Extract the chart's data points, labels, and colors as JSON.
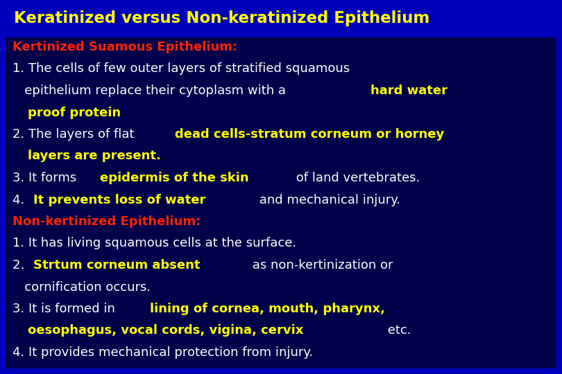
{
  "title": "Keratinized versus Non-keratinized Epithelium",
  "title_color": "#FFFF00",
  "title_fontsize": 16.5,
  "fig_bg": "#0000BB",
  "content_bg": "#00004A",
  "content_lines": [
    [
      {
        "text": "Kertinized Suamous Epithelium:",
        "color": "#FF2200",
        "bold": true
      }
    ],
    [
      {
        "text": "1. The cells of few outer layers of stratified squamous",
        "color": "#FFFFFF",
        "bold": false
      }
    ],
    [
      {
        "text": "   epithelium replace their cytoplasm with a ",
        "color": "#FFFFFF",
        "bold": false
      },
      {
        "text": "hard water",
        "color": "#FFFF00",
        "bold": true
      }
    ],
    [
      {
        "text": "   ",
        "color": "#FFFFFF",
        "bold": false
      },
      {
        "text": "proof protein",
        "color": "#FFFF00",
        "bold": true
      }
    ],
    [
      {
        "text": "2. The layers of flat ",
        "color": "#FFFFFF",
        "bold": false
      },
      {
        "text": "dead cells-stratum corneum or horney",
        "color": "#FFFF00",
        "bold": true
      }
    ],
    [
      {
        "text": "   ",
        "color": "#FFFFFF",
        "bold": false
      },
      {
        "text": "layers are present.",
        "color": "#FFFF00",
        "bold": true
      }
    ],
    [
      {
        "text": "3. It forms ",
        "color": "#FFFFFF",
        "bold": false
      },
      {
        "text": "epidermis of the skin",
        "color": "#FFFF00",
        "bold": true
      },
      {
        "text": " of land vertebrates.",
        "color": "#FFFFFF",
        "bold": false
      }
    ],
    [
      {
        "text": "4. ",
        "color": "#FFFFFF",
        "bold": false
      },
      {
        "text": "It prevents loss of water",
        "color": "#FFFF00",
        "bold": true
      },
      {
        "text": " and mechanical injury.",
        "color": "#FFFFFF",
        "bold": false
      }
    ],
    [
      {
        "text": "Non-kertinized Epithelium:",
        "color": "#FF2200",
        "bold": true
      }
    ],
    [
      {
        "text": "1. It has living squamous cells at the surface.",
        "color": "#FFFFFF",
        "bold": false
      }
    ],
    [
      {
        "text": "2. ",
        "color": "#FFFFFF",
        "bold": false
      },
      {
        "text": "Strtum corneum absent",
        "color": "#FFFF00",
        "bold": true
      },
      {
        "text": " as non-kertinization or",
        "color": "#FFFFFF",
        "bold": false
      }
    ],
    [
      {
        "text": "   cornification occurs.",
        "color": "#FFFFFF",
        "bold": false
      }
    ],
    [
      {
        "text": "3. It is formed in ",
        "color": "#FFFFFF",
        "bold": false
      },
      {
        "text": "lining of cornea, mouth, pharynx,",
        "color": "#FFFF00",
        "bold": true
      }
    ],
    [
      {
        "text": "   ",
        "color": "#FFFFFF",
        "bold": false
      },
      {
        "text": "oesophagus, vocal cords, vigina, cervix",
        "color": "#FFFF00",
        "bold": true
      },
      {
        "text": " etc.",
        "color": "#FFFFFF",
        "bold": false
      }
    ],
    [
      {
        "text": "4. It provides mechanical protection from injury.",
        "color": "#FFFFFF",
        "bold": false
      }
    ]
  ],
  "content_fontsize": 13.0
}
